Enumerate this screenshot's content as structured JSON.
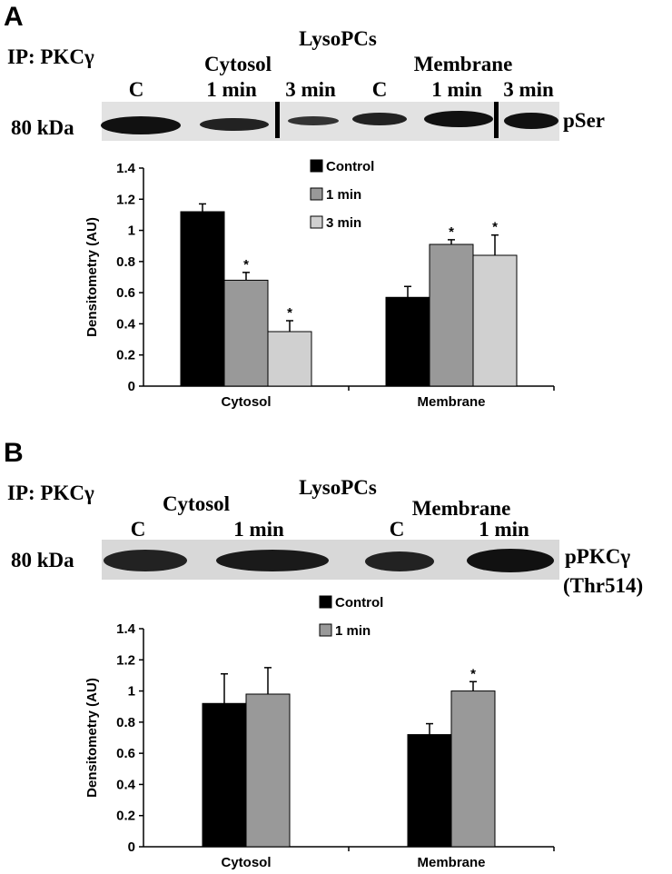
{
  "panels": [
    {
      "letter": "A",
      "ip": "IP: PKCγ",
      "groups": [
        "Cytosol",
        "LysoPCs",
        "Membrane"
      ],
      "lanes": [
        "C",
        "1 min",
        "3 min",
        "C",
        "1 min",
        "3 min"
      ],
      "marker": "80 kDa",
      "blot_label": [
        "pSer"
      ]
    },
    {
      "letter": "B",
      "ip": "IP: PKCγ",
      "groups": [
        "Cytosol",
        "LysoPCs",
        "Membrane"
      ],
      "lanes": [
        "C",
        "1 min",
        "C",
        "1 min"
      ],
      "marker": "80 kDa",
      "blot_label": [
        "pPKCγ",
        "(Thr514)"
      ]
    }
  ],
  "chart_data": [
    {
      "type": "bar",
      "ylabel": "Densitometry (AU)",
      "categories": [
        "Cytosol",
        "Membrane"
      ],
      "series": [
        {
          "name": "Control",
          "color": "#000000",
          "values": [
            1.12,
            0.57
          ],
          "errors": [
            0.05,
            0.07
          ],
          "significance": [
            null,
            null
          ]
        },
        {
          "name": "1 min",
          "color": "#999999",
          "values": [
            0.68,
            0.91
          ],
          "errors": [
            0.05,
            0.03
          ],
          "significance": [
            "*",
            "*"
          ]
        },
        {
          "name": "3 min",
          "color": "#d0d0d0",
          "values": [
            0.35,
            0.84
          ],
          "errors": [
            0.07,
            0.13
          ],
          "significance": [
            "*",
            "*"
          ]
        }
      ],
      "ylim": [
        0,
        1.4
      ],
      "yticks": [
        0,
        0.2,
        0.4,
        0.6,
        0.8,
        1,
        1.2,
        1.4
      ]
    },
    {
      "type": "bar",
      "ylabel": "Densitometry (AU)",
      "categories": [
        "Cytosol",
        "Membrane"
      ],
      "series": [
        {
          "name": "Control",
          "color": "#000000",
          "values": [
            0.92,
            0.72
          ],
          "errors": [
            0.19,
            0.07
          ],
          "significance": [
            null,
            null
          ]
        },
        {
          "name": "1 min",
          "color": "#999999",
          "values": [
            0.98,
            1.0
          ],
          "errors": [
            0.17,
            0.06
          ],
          "significance": [
            null,
            "*"
          ]
        }
      ],
      "ylim": [
        0,
        1.4
      ],
      "yticks": [
        0,
        0.2,
        0.4,
        0.6,
        0.8,
        1,
        1.2,
        1.4
      ]
    }
  ]
}
